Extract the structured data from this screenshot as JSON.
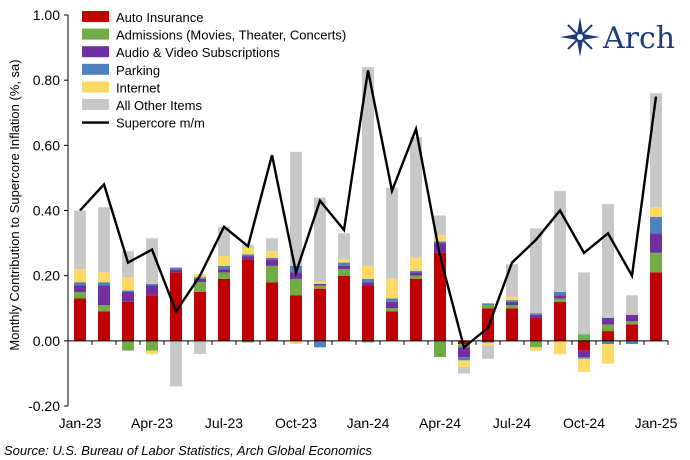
{
  "logo": {
    "text": "Arch",
    "color": "#1f3c78"
  },
  "source_note": "Source: U.S. Bureau of Labor Statistics, Arch Global Economics",
  "chart_data": {
    "type": "bar",
    "stacked": true,
    "ylabel": "Monthly Contribution to Supercore Inflation (%, sa)",
    "ylim": [
      -0.2,
      1.0
    ],
    "yticks": [
      "-0.20",
      "0.00",
      "0.20",
      "0.40",
      "0.60",
      "0.80",
      "1.00"
    ],
    "x_tick_labels": [
      {
        "index": 0,
        "label": "Jan-23"
      },
      {
        "index": 3,
        "label": "Apr-23"
      },
      {
        "index": 6,
        "label": "Jul-23"
      },
      {
        "index": 9,
        "label": "Oct-23"
      },
      {
        "index": 12,
        "label": "Jan-24"
      },
      {
        "index": 15,
        "label": "Apr-24"
      },
      {
        "index": 18,
        "label": "Jul-24"
      },
      {
        "index": 21,
        "label": "Oct-24"
      },
      {
        "index": 24,
        "label": "Jan-25"
      }
    ],
    "categories": [
      "Jan-23",
      "Feb-23",
      "Mar-23",
      "Apr-23",
      "May-23",
      "Jun-23",
      "Jul-23",
      "Aug-23",
      "Sep-23",
      "Oct-23",
      "Nov-23",
      "Dec-23",
      "Jan-24",
      "Feb-24",
      "Mar-24",
      "Apr-24",
      "May-24",
      "Jun-24",
      "Jul-24",
      "Aug-24",
      "Sep-24",
      "Oct-24",
      "Nov-24",
      "Dec-24",
      "Jan-25"
    ],
    "legend_placement": "top-left",
    "grid": false,
    "series": [
      {
        "name": "Auto Insurance",
        "color": "#c00000",
        "values": [
          0.13,
          0.09,
          0.12,
          0.14,
          0.21,
          0.15,
          0.19,
          0.25,
          0.18,
          0.14,
          0.16,
          0.2,
          0.17,
          0.09,
          0.19,
          0.27,
          -0.01,
          0.1,
          0.1,
          0.07,
          0.12,
          -0.03,
          0.03,
          0.05,
          0.21
        ]
      },
      {
        "name": "Admissions (Movies, Theater, Concerts)",
        "color": "#70ad47",
        "values": [
          0.02,
          0.02,
          -0.03,
          -0.03,
          0.0,
          0.03,
          0.02,
          -0.005,
          0.05,
          0.05,
          0.01,
          0.02,
          -0.005,
          0.01,
          0.01,
          -0.05,
          -0.01,
          0.01,
          0.01,
          -0.02,
          0.01,
          0.02,
          0.02,
          0.01,
          0.06
        ]
      },
      {
        "name": "Audio & Video Subscriptions",
        "color": "#7030a0",
        "values": [
          0.02,
          0.06,
          0.03,
          0.03,
          0.01,
          0.01,
          0.01,
          0.01,
          0.02,
          0.02,
          0.005,
          0.01,
          0.01,
          0.02,
          0.01,
          0.03,
          -0.03,
          -0.005,
          0.01,
          0.01,
          0.01,
          -0.02,
          0.02,
          0.02,
          0.06
        ]
      },
      {
        "name": "Parking",
        "color": "#4f81bd",
        "values": [
          0.01,
          0.01,
          0.005,
          0.005,
          0.005,
          0.005,
          0.01,
          0.005,
          0.005,
          0.02,
          -0.02,
          0.01,
          0.01,
          0.01,
          0.005,
          0.005,
          -0.01,
          0.005,
          0.005,
          0.005,
          0.01,
          -0.005,
          -0.01,
          -0.01,
          0.05
        ]
      },
      {
        "name": "Internet",
        "color": "#ffd966",
        "values": [
          0.04,
          0.03,
          0.04,
          -0.01,
          0.0,
          0.01,
          0.03,
          0.02,
          0.02,
          -0.01,
          0.005,
          0.01,
          0.04,
          0.06,
          0.04,
          0.02,
          -0.02,
          -0.01,
          0.01,
          -0.01,
          -0.04,
          -0.04,
          -0.06,
          0.0,
          0.03
        ]
      },
      {
        "name": "All Other Items",
        "color": "#c8c8c8",
        "values": [
          0.18,
          0.2,
          0.08,
          0.14,
          -0.14,
          -0.04,
          0.09,
          0.01,
          0.04,
          0.35,
          0.26,
          0.08,
          0.61,
          0.28,
          0.37,
          0.06,
          -0.02,
          -0.04,
          0.1,
          0.26,
          0.31,
          0.19,
          0.35,
          0.06,
          0.35
        ]
      }
    ],
    "line": {
      "name": "Supercore m/m",
      "color": "#000000",
      "values": [
        0.4,
        0.48,
        0.24,
        0.28,
        0.09,
        0.2,
        0.35,
        0.29,
        0.57,
        0.21,
        0.43,
        0.34,
        0.83,
        0.46,
        0.65,
        0.26,
        -0.02,
        0.04,
        0.24,
        0.31,
        0.4,
        0.27,
        0.33,
        0.2,
        0.75
      ]
    }
  }
}
